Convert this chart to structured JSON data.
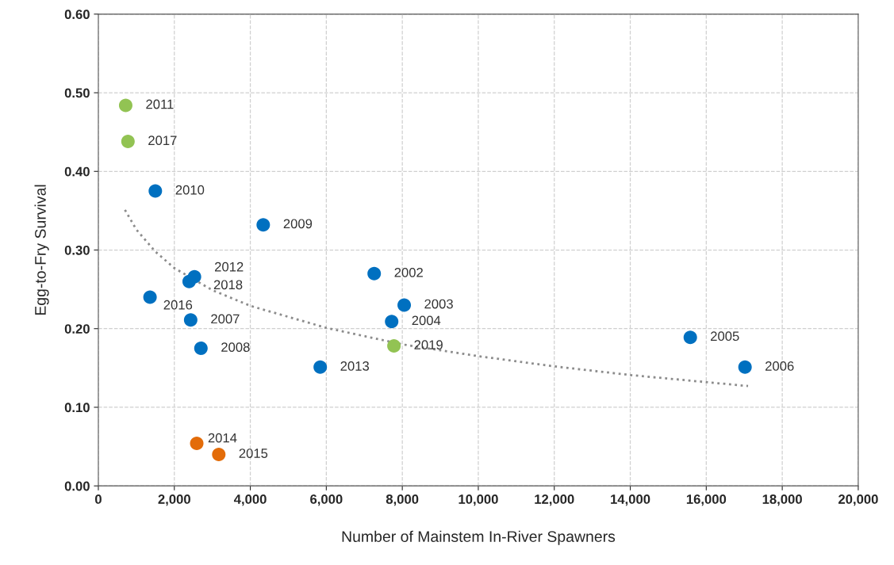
{
  "chart_data": {
    "type": "scatter",
    "xlabel": "Number of Mainstem In-River Spawners",
    "ylabel": "Egg-to-Fry Survival",
    "xlim": [
      0,
      20000
    ],
    "ylim": [
      0,
      0.6
    ],
    "xticks": [
      {
        "value": 0,
        "label": "0"
      },
      {
        "value": 2000,
        "label": "2,000"
      },
      {
        "value": 4000,
        "label": "4,000"
      },
      {
        "value": 6000,
        "label": "6,000"
      },
      {
        "value": 8000,
        "label": "8,000"
      },
      {
        "value": 10000,
        "label": "10,000"
      },
      {
        "value": 12000,
        "label": "12,000"
      },
      {
        "value": 14000,
        "label": "14,000"
      },
      {
        "value": 16000,
        "label": "16,000"
      },
      {
        "value": 18000,
        "label": "18,000"
      },
      {
        "value": 20000,
        "label": "20,000"
      }
    ],
    "yticks": [
      {
        "value": 0,
        "label": "0.00"
      },
      {
        "value": 0.1,
        "label": "0.10"
      },
      {
        "value": 0.2,
        "label": "0.20"
      },
      {
        "value": 0.3,
        "label": "0.30"
      },
      {
        "value": 0.4,
        "label": "0.40"
      },
      {
        "value": 0.5,
        "label": "0.50"
      },
      {
        "value": 0.6,
        "label": "0.60"
      }
    ],
    "grid": true,
    "legend": false,
    "marker": "circle",
    "series": [
      {
        "type": "line",
        "color": "#8c8c8c",
        "line_style": "dotted",
        "marker": "none",
        "x": [
          700,
          1000,
          1500,
          2000,
          3000,
          4000,
          6000,
          8000,
          10000,
          12000,
          14000,
          17100
        ],
        "values": [
          0.351,
          0.326,
          0.298,
          0.277,
          0.249,
          0.229,
          0.201,
          0.18,
          0.165,
          0.152,
          0.141,
          0.127
        ]
      },
      {
        "color": "#0070c0",
        "x": [
          1500,
          4340,
          2530,
          2390,
          1360,
          2430,
          2700,
          7260,
          8050,
          7720,
          5840,
          15580,
          17020
        ],
        "values": [
          0.375,
          0.332,
          0.266,
          0.26,
          0.24,
          0.211,
          0.175,
          0.27,
          0.23,
          0.209,
          0.151,
          0.189,
          0.151
        ]
      },
      {
        "color": "#92c353",
        "x": [
          720,
          780,
          7780
        ],
        "values": [
          0.484,
          0.438,
          0.178
        ]
      },
      {
        "color": "#e36c09",
        "x": [
          2590,
          3170
        ],
        "values": [
          0.054,
          0.04
        ]
      }
    ],
    "annotations": [
      {
        "text": "2010",
        "x": 1500,
        "y": 0.375
      },
      {
        "text": "2009",
        "x": 4340,
        "y": 0.332
      },
      {
        "text": "2012",
        "x": 2530,
        "y": 0.266
      },
      {
        "text": "2018",
        "x": 2390,
        "y": 0.26
      },
      {
        "text": "2016",
        "x": 1360,
        "y": 0.24
      },
      {
        "text": "2007",
        "x": 2430,
        "y": 0.211
      },
      {
        "text": "2008",
        "x": 2700,
        "y": 0.175
      },
      {
        "text": "2002",
        "x": 7260,
        "y": 0.27
      },
      {
        "text": "2003",
        "x": 8050,
        "y": 0.23
      },
      {
        "text": "2004",
        "x": 7720,
        "y": 0.209
      },
      {
        "text": "2013",
        "x": 5840,
        "y": 0.151
      },
      {
        "text": "2005",
        "x": 15580,
        "y": 0.189
      },
      {
        "text": "2006",
        "x": 17020,
        "y": 0.151
      },
      {
        "text": "2011",
        "x": 720,
        "y": 0.484
      },
      {
        "text": "2017",
        "x": 780,
        "y": 0.438
      },
      {
        "text": "2019",
        "x": 7780,
        "y": 0.178
      },
      {
        "text": "2014",
        "x": 2590,
        "y": 0.054
      },
      {
        "text": "2015",
        "x": 3170,
        "y": 0.04
      }
    ]
  }
}
